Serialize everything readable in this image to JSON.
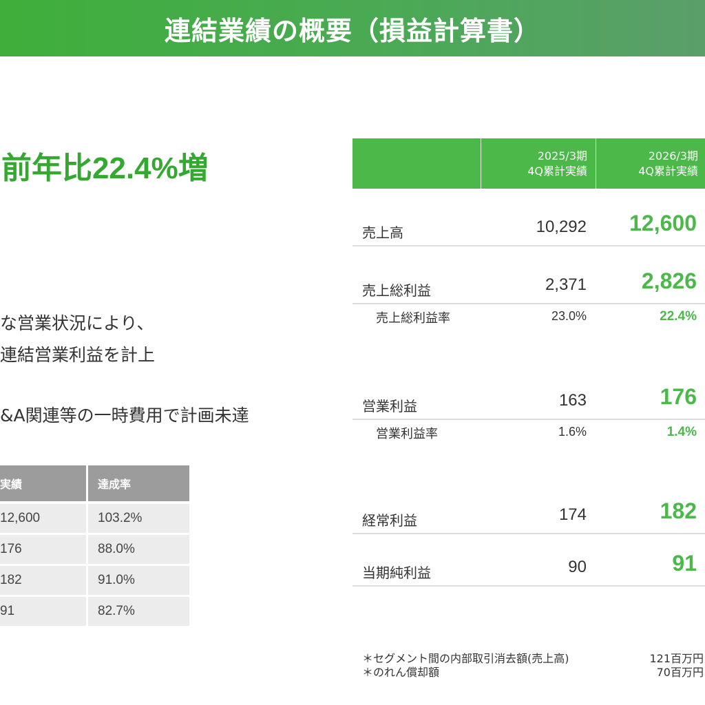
{
  "header": {
    "title": "連結業績の概要（損益計算書）"
  },
  "headline": "前年比22.4%増",
  "notes": [
    "な営業状況により、",
    "連結営業利益を計上",
    "&A関連等の一時費用で計画未達"
  ],
  "left_table": {
    "headers": [
      "実績",
      "達成率"
    ],
    "rows": [
      [
        "12,600",
        "103.2%"
      ],
      [
        "176",
        "88.0%"
      ],
      [
        "182",
        "91.0%"
      ],
      [
        "91",
        "82.7%"
      ]
    ]
  },
  "right_table": {
    "headers": [
      {
        "line1": "2025/3期",
        "line2": "4Q累計実績"
      },
      {
        "line1": "2026/3期",
        "line2": "4Q累計実績"
      }
    ],
    "rows": [
      {
        "label": "売上高",
        "prev": "10,292",
        "cur": "12,600"
      },
      {
        "label": "売上総利益",
        "prev": "2,371",
        "cur": "2,826"
      },
      {
        "label": "売上総利益率",
        "prev": "23.0%",
        "cur": "22.4%"
      },
      {
        "label": "営業利益",
        "prev": "163",
        "cur": "176"
      },
      {
        "label": "営業利益率",
        "prev": "1.6%",
        "cur": "1.4%"
      },
      {
        "label": "経常利益",
        "prev": "174",
        "cur": "182"
      },
      {
        "label": "当期純利益",
        "prev": "90",
        "cur": "91"
      }
    ]
  },
  "footnotes": [
    {
      "label": "＊セグメント間の内部取引消去額(売上高)",
      "value": "121百万円"
    },
    {
      "label": "＊のれん償却額",
      "value": "70百万円"
    }
  ],
  "colors": {
    "accent_green": "#4cb84a",
    "headline_green": "#35a832",
    "header_gray": "#9c9c9c"
  }
}
